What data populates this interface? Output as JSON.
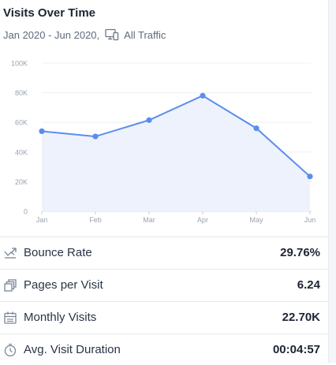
{
  "header": {
    "title": "Visits Over Time",
    "date_range": "Jan 2020 - Jun 2020,",
    "traffic_filter": "All Traffic"
  },
  "chart_data": {
    "type": "area",
    "categories": [
      "Jan",
      "Feb",
      "Mar",
      "Apr",
      "May",
      "Jun"
    ],
    "values": [
      54000,
      50500,
      61500,
      78000,
      56000,
      23500
    ],
    "y_ticks": [
      "0",
      "20K",
      "40K",
      "60K",
      "80K",
      "100K"
    ],
    "ylim": [
      0,
      100000
    ],
    "grid": true,
    "line_color": "#5b8def",
    "fill_color": "#eef2fd"
  },
  "metrics": [
    {
      "icon": "bounce-rate-icon",
      "label": "Bounce Rate",
      "value": "29.76%"
    },
    {
      "icon": "pages-per-visit-icon",
      "label": "Pages per Visit",
      "value": "6.24"
    },
    {
      "icon": "monthly-visits-icon",
      "label": "Monthly Visits",
      "value": "22.70K"
    },
    {
      "icon": "visit-duration-icon",
      "label": "Avg. Visit Duration",
      "value": "00:04:57"
    }
  ]
}
